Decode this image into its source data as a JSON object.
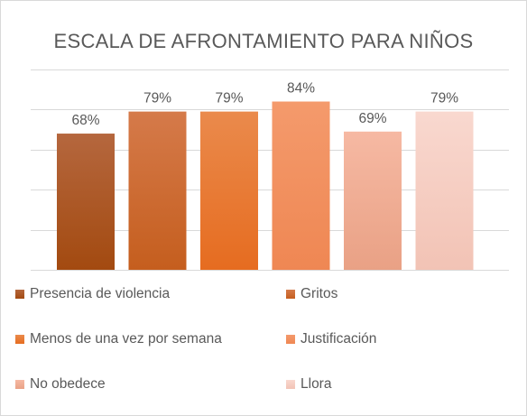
{
  "chart_data": {
    "type": "bar",
    "title": "ESCALA DE AFRONTAMIENTO PARA NIÑOS",
    "xlabel": "",
    "ylabel": "",
    "ylim": [
      0,
      100
    ],
    "grid": true,
    "legend_position": "bottom",
    "series": [
      {
        "name": "Presencia de violencia",
        "value": 68,
        "label": "68%",
        "color_top": "#b5673e",
        "color_bottom": "#a34a10"
      },
      {
        "name": "Gritos",
        "value": 79,
        "label": "79%",
        "color_top": "#d57a4a",
        "color_bottom": "#c55e1e"
      },
      {
        "name": "Menos de una vez por semana",
        "value": 79,
        "label": "79%",
        "color_top": "#ea8a4c",
        "color_bottom": "#e66c20"
      },
      {
        "name": "Justificación",
        "value": 84,
        "label": "84%",
        "color_top": "#f49a6c",
        "color_bottom": "#ef8753"
      },
      {
        "name": "No obedece",
        "value": 69,
        "label": "69%",
        "color_top": "#f6b9a3",
        "color_bottom": "#e9a185"
      },
      {
        "name": "Llora",
        "value": 79,
        "label": "79%",
        "color_top": "#f9d8cf",
        "color_bottom": "#f2c3b5"
      }
    ]
  },
  "colors": {
    "gridline": "#d9d9d9",
    "text": "#595959"
  }
}
